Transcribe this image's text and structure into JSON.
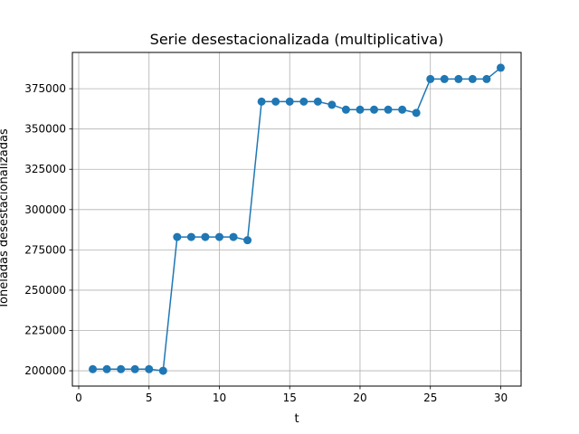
{
  "chart_data": {
    "type": "line",
    "title": "Serie desestacionalizada (multiplicativa)",
    "xlabel": "t",
    "ylabel": "Toneladas desestacionalizadas",
    "xlim": [
      -0.45,
      31.45
    ],
    "ylim": [
      190500,
      397500
    ],
    "xticks": [
      0,
      5,
      10,
      15,
      20,
      25,
      30
    ],
    "yticks": [
      200000,
      225000,
      250000,
      275000,
      300000,
      325000,
      350000,
      375000
    ],
    "grid": true,
    "color": "#1f77b4",
    "marker": "circle",
    "x": [
      1,
      2,
      3,
      4,
      5,
      6,
      7,
      8,
      9,
      10,
      11,
      12,
      13,
      14,
      15,
      16,
      17,
      18,
      19,
      20,
      21,
      22,
      23,
      24,
      25,
      26,
      27,
      28,
      29,
      30
    ],
    "y": [
      201000,
      201000,
      201000,
      201000,
      201000,
      200000,
      283000,
      283000,
      283000,
      283000,
      283000,
      281000,
      367000,
      367000,
      367000,
      367000,
      367000,
      365000,
      362000,
      362000,
      362000,
      362000,
      362000,
      360000,
      381000,
      381000,
      381000,
      381000,
      381000,
      388000
    ]
  }
}
